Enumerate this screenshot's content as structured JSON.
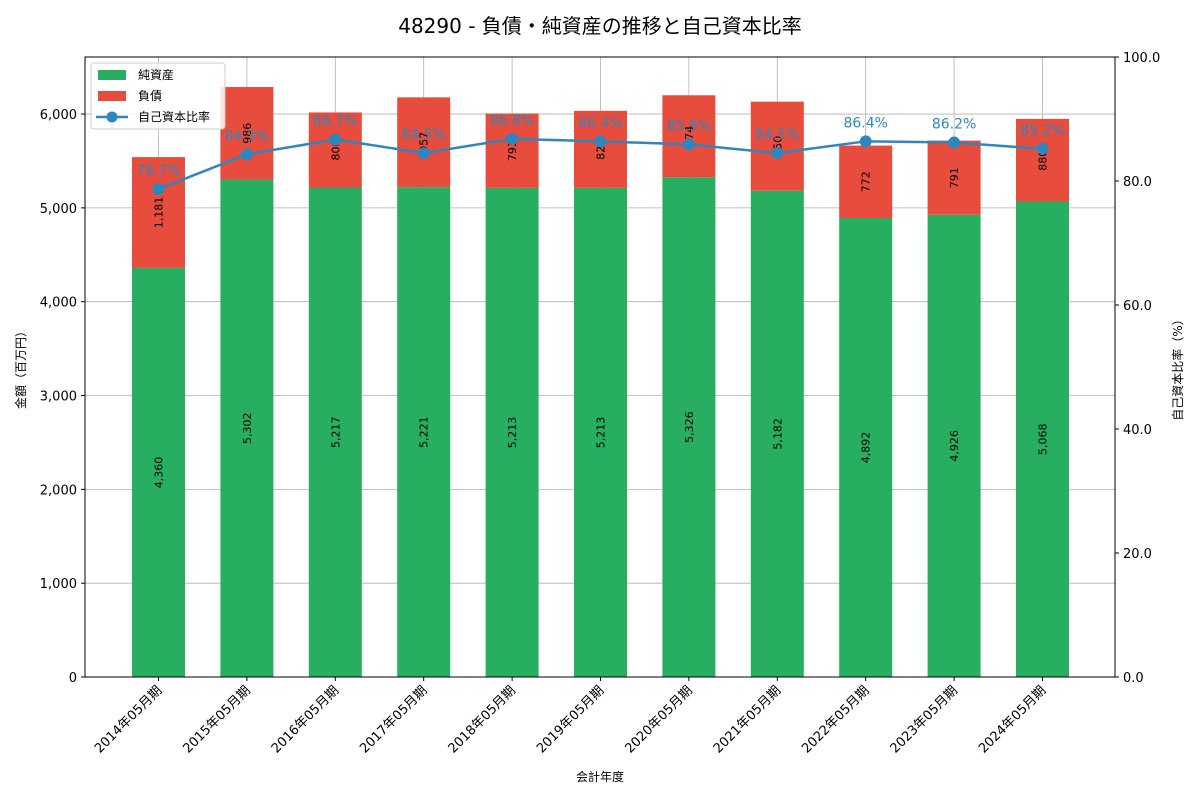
{
  "chart_data": {
    "type": "bar",
    "subtype": "stacked_bar_with_line",
    "title": "48290 - 負債・純資産の推移と自己資本比率",
    "xlabel": "会計年度",
    "ylabel": "金額（百万円）",
    "ylabel_right": "自己資本比率（%）",
    "ylim": [
      0,
      6608
    ],
    "ylim_right": [
      0,
      100
    ],
    "yticks": [
      0,
      1000,
      2000,
      3000,
      4000,
      5000,
      6000
    ],
    "ytick_labels": [
      "0",
      "1,000",
      "2,000",
      "3,000",
      "4,000",
      "5,000",
      "6,000"
    ],
    "yticks_right": [
      0,
      20,
      40,
      60,
      80,
      100
    ],
    "ytick_labels_right": [
      "0.0",
      "20.0",
      "40.0",
      "60.0",
      "80.0",
      "100.0"
    ],
    "grid": true,
    "legend_position": "upper left",
    "categories": [
      "2014年05月期",
      "2015年05月期",
      "2016年05月期",
      "2017年05月期",
      "2018年05月期",
      "2019年05月期",
      "2020年05月期",
      "2021年05月期",
      "2022年05月期",
      "2023年05月期",
      "2024年05月期"
    ],
    "series": [
      {
        "name": "純資産",
        "type": "bar",
        "color": "#27ae60",
        "values": [
          4360,
          5302,
          5217,
          5221,
          5213,
          5213,
          5326,
          5182,
          4892,
          4926,
          5068
        ],
        "labels": [
          "4,360",
          "5,302",
          "5,217",
          "5,221",
          "5,213",
          "5,213",
          "5,326",
          "5,182",
          "4,892",
          "4,926",
          "5,068"
        ]
      },
      {
        "name": "負債",
        "type": "bar",
        "color": "#e74c3c",
        "values": [
          1181,
          986,
          800,
          957,
          793,
          821,
          874,
          950,
          772,
          791,
          880
        ],
        "labels": [
          "1,181",
          "986",
          "800",
          "957",
          "793",
          "821",
          "874",
          "950",
          "772",
          "791",
          "880"
        ]
      },
      {
        "name": "自己資本比率",
        "type": "line",
        "axis": "right",
        "color": "#2e86c1",
        "values": [
          78.7,
          84.3,
          86.7,
          84.5,
          86.8,
          86.4,
          85.9,
          84.5,
          86.4,
          86.2,
          85.2
        ],
        "labels": [
          "78.7%",
          "84.3%",
          "86.7%",
          "84.5%",
          "86.8%",
          "86.4%",
          "85.9%",
          "84.5%",
          "86.4%",
          "86.2%",
          "85.2%"
        ]
      }
    ]
  }
}
